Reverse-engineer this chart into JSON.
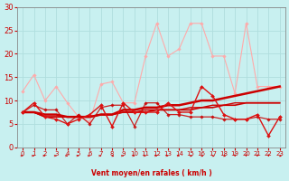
{
  "title": "",
  "xlabel": "Vent moyen/en rafales ( km/h )",
  "ylabel": "",
  "bg_color": "#c8f0f0",
  "grid_color": "#b0dede",
  "xlim": [
    -0.5,
    23.5
  ],
  "ylim": [
    0,
    30
  ],
  "yticks": [
    0,
    5,
    10,
    15,
    20,
    25,
    30
  ],
  "xticks": [
    0,
    1,
    2,
    3,
    4,
    5,
    6,
    7,
    8,
    9,
    10,
    11,
    12,
    13,
    14,
    15,
    16,
    17,
    18,
    19,
    20,
    21,
    22,
    23
  ],
  "series": [
    {
      "x": [
        0,
        1,
        2,
        3,
        4,
        5,
        6,
        7,
        8,
        9,
        10,
        11,
        12,
        13,
        14,
        15,
        16,
        17,
        18,
        19,
        20,
        21,
        22,
        23
      ],
      "y": [
        12,
        15.5,
        10,
        13,
        9.5,
        6.5,
        5.5,
        13.5,
        14,
        9.5,
        9.5,
        19.5,
        26.5,
        19.5,
        21,
        26.5,
        26.5,
        19.5,
        19.5,
        11.5,
        26.5,
        13,
        13,
        13
      ],
      "color": "#ffaaaa",
      "lw": 0.8,
      "marker": "D",
      "ms": 1.8,
      "alpha": 1.0,
      "zorder": 2
    },
    {
      "x": [
        0,
        1,
        2,
        3,
        4,
        5,
        6,
        7,
        8,
        9,
        10,
        11,
        12,
        13,
        14,
        15,
        16,
        17,
        18,
        19,
        20,
        21,
        22,
        23
      ],
      "y": [
        7.5,
        9.5,
        6.5,
        6.0,
        5.0,
        6.0,
        7.0,
        9.0,
        4.5,
        9.5,
        7.5,
        7.5,
        7.5,
        9.5,
        7.5,
        7.5,
        13.0,
        11.0,
        7.0,
        6.0,
        6.0,
        7.0,
        2.5,
        6.5
      ],
      "color": "#dd1111",
      "lw": 1.0,
      "marker": "D",
      "ms": 2.0,
      "alpha": 1.0,
      "zorder": 4
    },
    {
      "x": [
        0,
        1,
        2,
        3,
        4,
        5,
        6,
        7,
        8,
        9,
        10,
        11,
        12,
        13,
        14,
        15,
        16,
        17,
        18,
        19,
        20,
        21,
        22,
        23
      ],
      "y": [
        7.5,
        9.0,
        8.0,
        8.0,
        5.0,
        7.0,
        5.0,
        8.5,
        9.0,
        9.0,
        4.5,
        9.5,
        9.5,
        7.0,
        7.0,
        6.5,
        6.5,
        6.5,
        6.0,
        6.0,
        6.0,
        6.5,
        6.0,
        6.0
      ],
      "color": "#cc0000",
      "lw": 0.9,
      "marker": "D",
      "ms": 1.8,
      "alpha": 0.85,
      "zorder": 3
    },
    {
      "x": [
        0,
        1,
        2,
        3,
        4,
        5,
        6,
        7,
        8,
        9,
        10,
        11,
        12,
        13,
        14,
        15,
        16,
        17,
        18,
        19,
        20,
        21,
        22,
        23
      ],
      "y": [
        7.5,
        7.5,
        6.5,
        6.5,
        6.5,
        6.5,
        6.5,
        7.0,
        7.0,
        7.5,
        7.5,
        7.5,
        8.0,
        8.0,
        8.0,
        8.0,
        8.5,
        8.5,
        9.0,
        9.0,
        9.5,
        9.5,
        9.5,
        9.5
      ],
      "color": "#cc0000",
      "lw": 1.2,
      "marker": null,
      "ms": 0,
      "alpha": 1.0,
      "zorder": 3
    },
    {
      "x": [
        0,
        1,
        2,
        3,
        4,
        5,
        6,
        7,
        8,
        9,
        10,
        11,
        12,
        13,
        14,
        15,
        16,
        17,
        18,
        19,
        20,
        21,
        22,
        23
      ],
      "y": [
        7.5,
        7.5,
        7.0,
        7.0,
        6.5,
        6.5,
        6.5,
        7.0,
        7.0,
        8.0,
        8.0,
        8.5,
        8.5,
        9.0,
        9.0,
        9.5,
        10.0,
        10.0,
        10.5,
        11.0,
        11.5,
        12.0,
        12.5,
        13.0
      ],
      "color": "#cc0000",
      "lw": 1.8,
      "marker": null,
      "ms": 0,
      "alpha": 1.0,
      "zorder": 3
    },
    {
      "x": [
        0,
        1,
        2,
        3,
        4,
        5,
        6,
        7,
        8,
        9,
        10,
        11,
        12,
        13,
        14,
        15,
        16,
        17,
        18,
        19,
        20,
        21,
        22,
        23
      ],
      "y": [
        7.5,
        7.5,
        6.5,
        6.5,
        6.5,
        6.5,
        6.5,
        7.0,
        7.0,
        7.5,
        7.5,
        8.0,
        8.0,
        8.0,
        8.0,
        8.5,
        8.5,
        9.0,
        9.0,
        9.5,
        9.5,
        9.5,
        9.5,
        9.5
      ],
      "color": "#cc0000",
      "lw": 1.0,
      "marker": null,
      "ms": 0,
      "alpha": 1.0,
      "zorder": 3
    }
  ],
  "wind_arrows": [
    [
      0,
      270
    ],
    [
      1,
      270
    ],
    [
      2,
      270
    ],
    [
      3,
      270
    ],
    [
      4,
      270
    ],
    [
      5,
      270
    ],
    [
      6,
      270
    ],
    [
      7,
      270
    ],
    [
      8,
      315
    ],
    [
      9,
      270
    ],
    [
      10,
      270
    ],
    [
      11,
      270
    ],
    [
      12,
      270
    ],
    [
      13,
      270
    ],
    [
      14,
      270
    ],
    [
      15,
      315
    ],
    [
      16,
      315
    ],
    [
      17,
      315
    ],
    [
      18,
      315
    ],
    [
      19,
      0
    ],
    [
      20,
      0
    ],
    [
      21,
      0
    ],
    [
      22,
      0
    ],
    [
      23,
      315
    ]
  ],
  "arrow_color": "#cc0000"
}
